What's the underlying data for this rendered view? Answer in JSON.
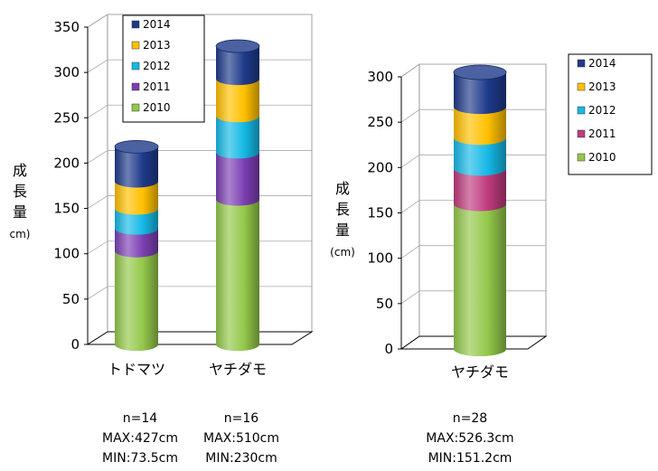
{
  "chart_data": [
    {
      "type": "bar",
      "stacked": true,
      "style": "3d-cylinder",
      "categories": [
        "トドマツ",
        "ヤチダモ"
      ],
      "series": [
        {
          "name": "2010",
          "values": [
            103,
            160
          ]
        },
        {
          "name": "2011",
          "values": [
            25,
            52
          ]
        },
        {
          "name": "2012",
          "values": [
            22,
            40
          ]
        },
        {
          "name": "2013",
          "values": [
            30,
            41
          ]
        },
        {
          "name": "2014",
          "values": [
            38,
            36
          ]
        }
      ],
      "ylim": [
        0,
        350
      ],
      "yticks": [
        0,
        50,
        100,
        150,
        200,
        250,
        300,
        350
      ],
      "ylabel": [
        "成",
        "長",
        "量",
        "cm)"
      ],
      "xlabel": "",
      "grid": true,
      "legend": "top-left-inside",
      "stats": [
        {
          "n": "n=14",
          "max": "MAX:427cm",
          "min": "MIN:73.5cm"
        },
        {
          "n": "n=16",
          "max": "MAX:510cm",
          "min": "MIN:230cm"
        }
      ]
    },
    {
      "type": "bar",
      "stacked": true,
      "style": "3d-cylinder",
      "categories": [
        "ヤチダモ"
      ],
      "series": [
        {
          "name": "2010",
          "values": [
            160
          ]
        },
        {
          "name": "2011",
          "values": [
            39
          ]
        },
        {
          "name": "2012",
          "values": [
            34
          ]
        },
        {
          "name": "2013",
          "values": [
            34
          ]
        },
        {
          "name": "2014",
          "values": [
            38
          ]
        }
      ],
      "ylim": [
        0,
        300
      ],
      "yticks": [
        0,
        50,
        100,
        150,
        200,
        250,
        300
      ],
      "ylabel": [
        "成",
        "長",
        "量",
        "(cm)"
      ],
      "xlabel": "",
      "grid": true,
      "legend": "right",
      "stats": [
        {
          "n": "n=28",
          "max": "MAX:526.3cm",
          "min": "MIN:151.2cm"
        }
      ]
    }
  ],
  "colors": {
    "chart1": [
      "#93c84a",
      "#7c3fb3",
      "#15b9e6",
      "#ffc000",
      "#1e3a8a"
    ],
    "chart2": [
      "#93c84a",
      "#bf3b7e",
      "#15b9e6",
      "#ffc000",
      "#1e3a8a"
    ]
  }
}
